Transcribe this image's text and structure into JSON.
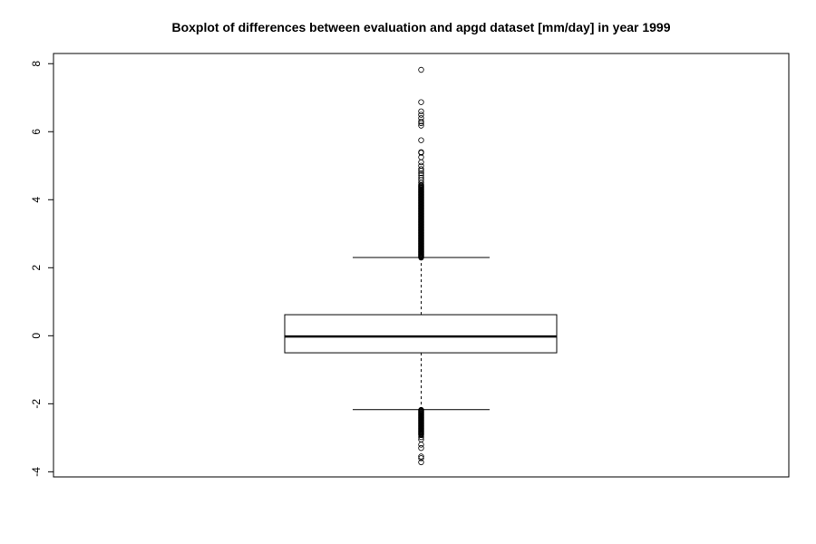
{
  "chart_data": {
    "type": "boxplot",
    "title": "Boxplot of differences between evaluation and apgd dataset [mm/day] in year 1999",
    "xlabel": "",
    "ylabel": "",
    "ylim": [
      -4.15,
      8.3
    ],
    "y_ticks": [
      -4,
      -2,
      0,
      2,
      4,
      6,
      8
    ],
    "grid": false,
    "legend": "none",
    "box": {
      "q1": -0.5,
      "median": -0.02,
      "q3": 0.62,
      "whisker_low": -2.17,
      "whisker_high": 2.3
    },
    "outliers_high": [
      7.82,
      6.87,
      6.6,
      6.5,
      6.4,
      6.3,
      6.25,
      6.18,
      5.75,
      5.4,
      5.38,
      5.25,
      5.1,
      5.0,
      4.9,
      4.85,
      4.78,
      4.72,
      4.65,
      4.58,
      4.5,
      4.44
    ],
    "outliers_high_dense_range": [
      2.3,
      4.42
    ],
    "outliers_low": [
      -3.72,
      -3.6,
      -3.55,
      -3.3,
      -3.2,
      -3.05,
      -2.98,
      -2.92
    ],
    "outliers_low_dense_range": [
      -2.9,
      -2.17
    ]
  }
}
